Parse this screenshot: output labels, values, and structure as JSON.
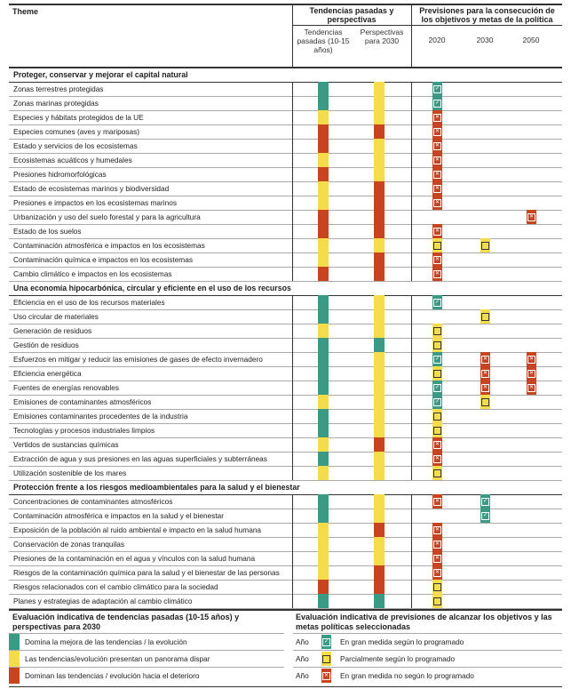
{
  "header": {
    "theme": "Theme",
    "trends_group": "Tendencias pasadas y perspectivas",
    "trends_past": "Tendencias pasadas (10-15 años)",
    "outlook": "Perspectivas para 2030",
    "forecast_group": "Previsiones para la consecución de los objetivos y metas de la política",
    "years": [
      "2020",
      "2030",
      "2050"
    ]
  },
  "colors": {
    "g": "#3a9a84",
    "y": "#f5dc4a",
    "r": "#c8431f"
  },
  "chart_data": {
    "type": "table",
    "sections": [
      {
        "title": "Proteger, conservar y mejorar el capital natural",
        "rows": [
          {
            "theme": "Zonas terrestres protegidas",
            "trend": "g",
            "outlook": "y",
            "f2020": "c",
            "f2030": "",
            "f2050": ""
          },
          {
            "theme": "Zonas marinas protegidas",
            "trend": "g",
            "outlook": "y",
            "f2020": "c",
            "f2030": "",
            "f2050": ""
          },
          {
            "theme": "Especies y hábitats protegidos de la UE",
            "trend": "y",
            "outlook": "y",
            "f2020": "x",
            "f2030": "",
            "f2050": ""
          },
          {
            "theme": "Especies comunes (aves y mariposas)",
            "trend": "r",
            "outlook": "r",
            "f2020": "x",
            "f2030": "",
            "f2050": ""
          },
          {
            "theme": "Estado y servicios de los ecosistemas",
            "trend": "r",
            "outlook": "y",
            "f2020": "x",
            "f2030": "",
            "f2050": ""
          },
          {
            "theme": "Ecosistemas acuáticos y humedales",
            "trend": "y",
            "outlook": "y",
            "f2020": "x",
            "f2030": "",
            "f2050": ""
          },
          {
            "theme": "Presiones hidromorfológicas",
            "trend": "r",
            "outlook": "y",
            "f2020": "x",
            "f2030": "",
            "f2050": ""
          },
          {
            "theme": "Estado de ecosistemas marinos y biodiversidad",
            "trend": "y",
            "outlook": "r",
            "f2020": "x",
            "f2030": "",
            "f2050": ""
          },
          {
            "theme": "Presiones e impactos en los ecosistemas marinos",
            "trend": "y",
            "outlook": "r",
            "f2020": "x",
            "f2030": "",
            "f2050": ""
          },
          {
            "theme": "Urbanización y uso del suelo forestal y para la agricultura",
            "trend": "r",
            "outlook": "r",
            "f2020": "",
            "f2030": "",
            "f2050": "x"
          },
          {
            "theme": "Estado de los suelos",
            "trend": "r",
            "outlook": "r",
            "f2020": "x",
            "f2030": "",
            "f2050": ""
          },
          {
            "theme": "Contaminación atmosférica e impactos en los ecosistemas",
            "trend": "y",
            "outlook": "y",
            "f2020": "p",
            "f2030": "p",
            "f2050": ""
          },
          {
            "theme": "Contaminación química e impactos en los ecosistemas",
            "trend": "y",
            "outlook": "r",
            "f2020": "x",
            "f2030": "",
            "f2050": ""
          },
          {
            "theme": "Cambio climático e impactos en los ecosistemas",
            "trend": "r",
            "outlook": "r",
            "f2020": "x",
            "f2030": "",
            "f2050": ""
          }
        ]
      },
      {
        "title": "Una economía hipocarbónica, circular y eficiente en el uso de los recursos",
        "rows": [
          {
            "theme": "Eficiencia en el uso de los recursos materiales",
            "trend": "g",
            "outlook": "y",
            "f2020": "c",
            "f2030": "",
            "f2050": ""
          },
          {
            "theme": "Uso circular de materiales",
            "trend": "g",
            "outlook": "y",
            "f2020": "",
            "f2030": "p",
            "f2050": ""
          },
          {
            "theme": "Generación de residuos",
            "trend": "y",
            "outlook": "y",
            "f2020": "p",
            "f2030": "",
            "f2050": ""
          },
          {
            "theme": "Gestión de residuos",
            "trend": "g",
            "outlook": "g",
            "f2020": "p",
            "f2030": "",
            "f2050": ""
          },
          {
            "theme": "Esfuerzos en mitigar y reducir las emisiones de gases de efecto invernadero",
            "trend": "g",
            "outlook": "y",
            "f2020": "c",
            "f2030": "x",
            "f2050": "x"
          },
          {
            "theme": "Eficiencia energética",
            "trend": "g",
            "outlook": "y",
            "f2020": "p",
            "f2030": "x",
            "f2050": "x"
          },
          {
            "theme": "Fuentes de energías renovables",
            "trend": "g",
            "outlook": "y",
            "f2020": "c",
            "f2030": "x",
            "f2050": "x"
          },
          {
            "theme": "Emisiones de contaminantes atmosféricos",
            "trend": "y",
            "outlook": "y",
            "f2020": "c",
            "f2030": "p",
            "f2050": ""
          },
          {
            "theme": "Emisiones contaminantes procedentes de la industria",
            "trend": "g",
            "outlook": "y",
            "f2020": "p",
            "f2030": "",
            "f2050": ""
          },
          {
            "theme": "Tecnologías y procesos industriales limpios",
            "trend": "g",
            "outlook": "y",
            "f2020": "p",
            "f2030": "",
            "f2050": ""
          },
          {
            "theme": "Vertidos de sustancias químicas",
            "trend": "y",
            "outlook": "r",
            "f2020": "x",
            "f2030": "",
            "f2050": ""
          },
          {
            "theme": "Extracción de agua y sus presiones en las aguas superficiales y subterráneas",
            "trend": "g",
            "outlook": "y",
            "f2020": "x",
            "f2030": "",
            "f2050": ""
          },
          {
            "theme": "Utilización sostenible de los mares",
            "trend": "y",
            "outlook": "y",
            "f2020": "p",
            "f2030": "",
            "f2050": ""
          }
        ]
      },
      {
        "title": "Protección frente a los riesgos medioambientales para la salud y el bienestar",
        "rows": [
          {
            "theme": "Concentraciones de contaminantes atmosféricos",
            "trend": "g",
            "outlook": "y",
            "f2020": "x",
            "f2030": "c",
            "f2050": ""
          },
          {
            "theme": "Contaminación atmosférica e impactos en la salud y el bienestar",
            "trend": "g",
            "outlook": "y",
            "f2020": "",
            "f2030": "c",
            "f2050": ""
          },
          {
            "theme": "Exposición de la población al ruido ambiental e impacto en la salud humana",
            "trend": "y",
            "outlook": "r",
            "f2020": "x",
            "f2030": "",
            "f2050": ""
          },
          {
            "theme": "Conservación de zonas tranquilas",
            "trend": "y",
            "outlook": "y",
            "f2020": "x",
            "f2030": "",
            "f2050": ""
          },
          {
            "theme": "Presiones de la contaminación en el agua y vínculos con la salud humana",
            "trend": "y",
            "outlook": "y",
            "f2020": "x",
            "f2030": "",
            "f2050": ""
          },
          {
            "theme": "Riesgos de la contaminación química para la salud y el bienestar de las personas",
            "trend": "y",
            "outlook": "r",
            "f2020": "x",
            "f2030": "",
            "f2050": ""
          },
          {
            "theme": "Riesgos relacionados con el cambio climático para la sociedad",
            "trend": "r",
            "outlook": "r",
            "f2020": "p",
            "f2030": "",
            "f2050": ""
          },
          {
            "theme": "Planes y estrategias de adaptación al cambio climático",
            "trend": "g",
            "outlook": "g",
            "f2020": "p",
            "f2030": "",
            "f2050": ""
          }
        ]
      }
    ]
  },
  "legend": {
    "left_title": "Evaluación indicativa de tendencias pasadas (10-15 años) y perspectivas para 2030",
    "left_items": [
      {
        "code": "g",
        "label": "Domina la mejora de las tendencias /  la evolución"
      },
      {
        "code": "y",
        "label": "Las tendencias/evolución presentan un panorama dispar"
      },
      {
        "code": "r",
        "label": "Dominan las tendencias / evolución hacia el deterioro"
      }
    ],
    "right_title": "Evaluación indicativa de previsiones de alcanzar los objetivos y las metas políticas seleccionadas",
    "right_items": [
      {
        "code": "c",
        "year": "Año",
        "label": "En gran medida según lo programado"
      },
      {
        "code": "p",
        "year": "Año",
        "label": "Parcialmente según lo programado"
      },
      {
        "code": "x",
        "year": "Año",
        "label": "En gran medida no según lo programado"
      }
    ]
  }
}
